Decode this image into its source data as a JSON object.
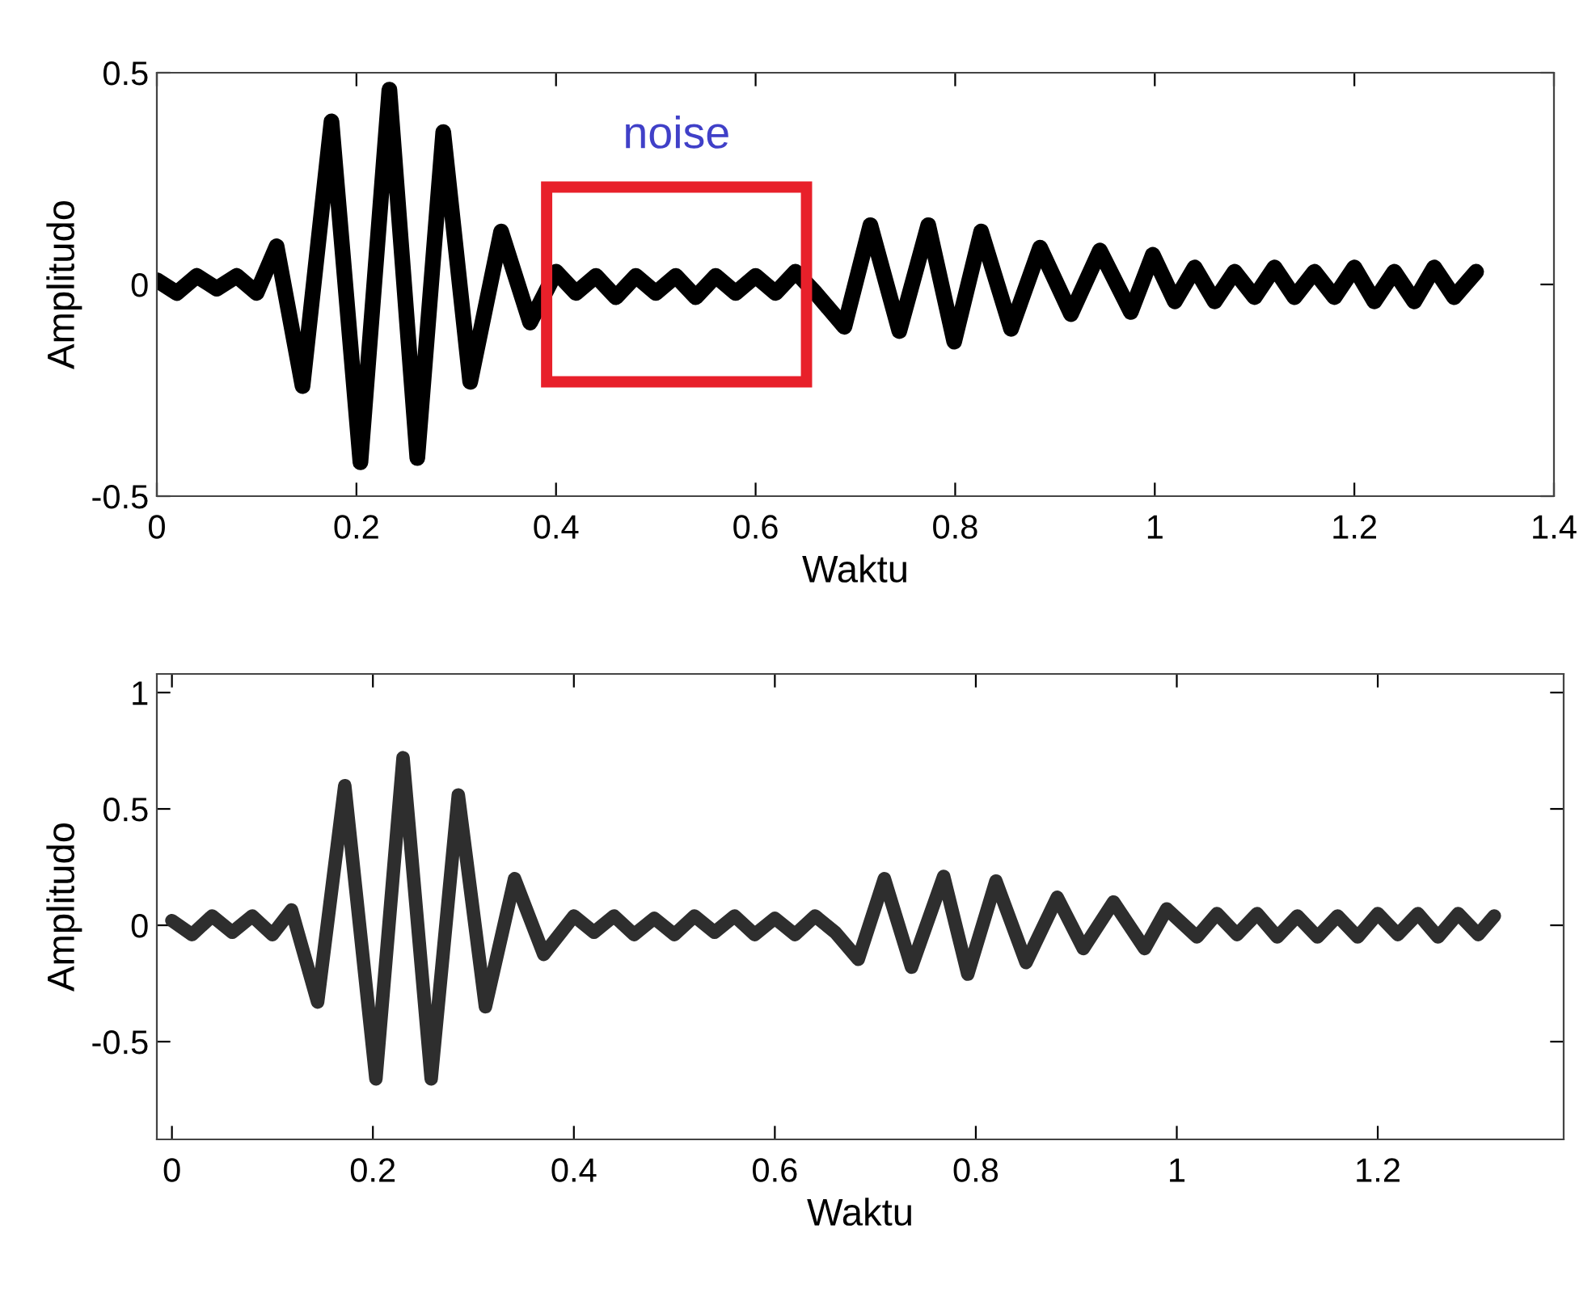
{
  "chart_data": [
    {
      "type": "line",
      "xlabel": "Waktu",
      "ylabel": "Amplitudo",
      "xlim": [
        0,
        1.4
      ],
      "ylim": [
        -0.5,
        0.5
      ],
      "xticks": [
        0,
        0.2,
        0.4,
        0.6,
        0.8,
        1,
        1.2,
        1.4
      ],
      "yticks": [
        -0.5,
        0,
        0.5
      ],
      "grid": false,
      "legend": false,
      "line_style": "solid",
      "marker": "none",
      "annotations": [
        "noise"
      ],
      "series": [
        {
          "color": "#000000",
          "x": [
            0,
            0.02,
            0.04,
            0.06,
            0.08,
            0.1,
            0.12,
            0.146,
            0.175,
            0.204,
            0.233,
            0.261,
            0.287,
            0.314,
            0.345,
            0.374,
            0.4,
            0.42,
            0.44,
            0.46,
            0.48,
            0.5,
            0.52,
            0.54,
            0.56,
            0.58,
            0.6,
            0.62,
            0.64,
            0.66,
            0.689,
            0.715,
            0.744,
            0.773,
            0.799,
            0.826,
            0.856,
            0.885,
            0.916,
            0.945,
            0.976,
            0.998,
            1.02,
            1.04,
            1.06,
            1.08,
            1.1,
            1.12,
            1.14,
            1.16,
            1.18,
            1.2,
            1.22,
            1.24,
            1.26,
            1.28,
            1.3,
            1.322
          ],
          "values": [
            0.01,
            -0.02,
            0.02,
            -0.01,
            0.02,
            -0.02,
            0.09,
            -0.24,
            0.385,
            -0.42,
            0.46,
            -0.41,
            0.36,
            -0.23,
            0.125,
            -0.09,
            0.03,
            -0.02,
            0.02,
            -0.03,
            0.02,
            -0.02,
            0.02,
            -0.03,
            0.02,
            -0.02,
            0.02,
            -0.02,
            0.03,
            -0.02,
            -0.1,
            0.14,
            -0.11,
            0.14,
            -0.135,
            0.125,
            -0.105,
            0.087,
            -0.07,
            0.08,
            -0.065,
            0.07,
            -0.04,
            0.04,
            -0.04,
            0.03,
            -0.03,
            0.04,
            -0.03,
            0.03,
            -0.03,
            0.04,
            -0.04,
            0.03,
            -0.04,
            0.04,
            -0.03,
            0.03
          ]
        }
      ]
    },
    {
      "type": "line",
      "xlabel": "Waktu",
      "ylabel": "Amplitudo",
      "xlim": [
        -0.015,
        1.385
      ],
      "ylim": [
        -0.92,
        1.08
      ],
      "xticks": [
        0,
        0.2,
        0.4,
        0.6,
        0.8,
        1,
        1.2
      ],
      "yticks": [
        -0.5,
        0,
        0.5,
        1
      ],
      "grid": false,
      "legend": false,
      "line_style": "solid",
      "marker": "none",
      "series": [
        {
          "color": "#2e2e2e",
          "x": [
            0,
            0.02,
            0.04,
            0.06,
            0.08,
            0.1,
            0.119,
            0.145,
            0.172,
            0.203,
            0.23,
            0.258,
            0.285,
            0.312,
            0.341,
            0.37,
            0.4,
            0.42,
            0.44,
            0.46,
            0.48,
            0.5,
            0.52,
            0.54,
            0.56,
            0.58,
            0.6,
            0.62,
            0.64,
            0.66,
            0.683,
            0.709,
            0.736,
            0.768,
            0.792,
            0.82,
            0.85,
            0.881,
            0.907,
            0.937,
            0.968,
            0.99,
            1.02,
            1.04,
            1.06,
            1.08,
            1.1,
            1.12,
            1.14,
            1.16,
            1.18,
            1.2,
            1.22,
            1.24,
            1.26,
            1.28,
            1.3,
            1.316
          ],
          "values": [
            0.02,
            -0.04,
            0.04,
            -0.03,
            0.04,
            -0.04,
            0.066,
            -0.33,
            0.6,
            -0.66,
            0.72,
            -0.66,
            0.56,
            -0.35,
            0.2,
            -0.125,
            0.04,
            -0.03,
            0.04,
            -0.04,
            0.03,
            -0.04,
            0.04,
            -0.03,
            0.04,
            -0.04,
            0.03,
            -0.04,
            0.04,
            -0.03,
            -0.146,
            0.2,
            -0.18,
            0.21,
            -0.21,
            0.19,
            -0.16,
            0.12,
            -0.1,
            0.1,
            -0.1,
            0.07,
            -0.05,
            0.05,
            -0.04,
            0.05,
            -0.05,
            0.04,
            -0.05,
            0.04,
            -0.05,
            0.05,
            -0.04,
            0.05,
            -0.05,
            0.05,
            -0.04,
            0.04
          ]
        }
      ]
    }
  ]
}
